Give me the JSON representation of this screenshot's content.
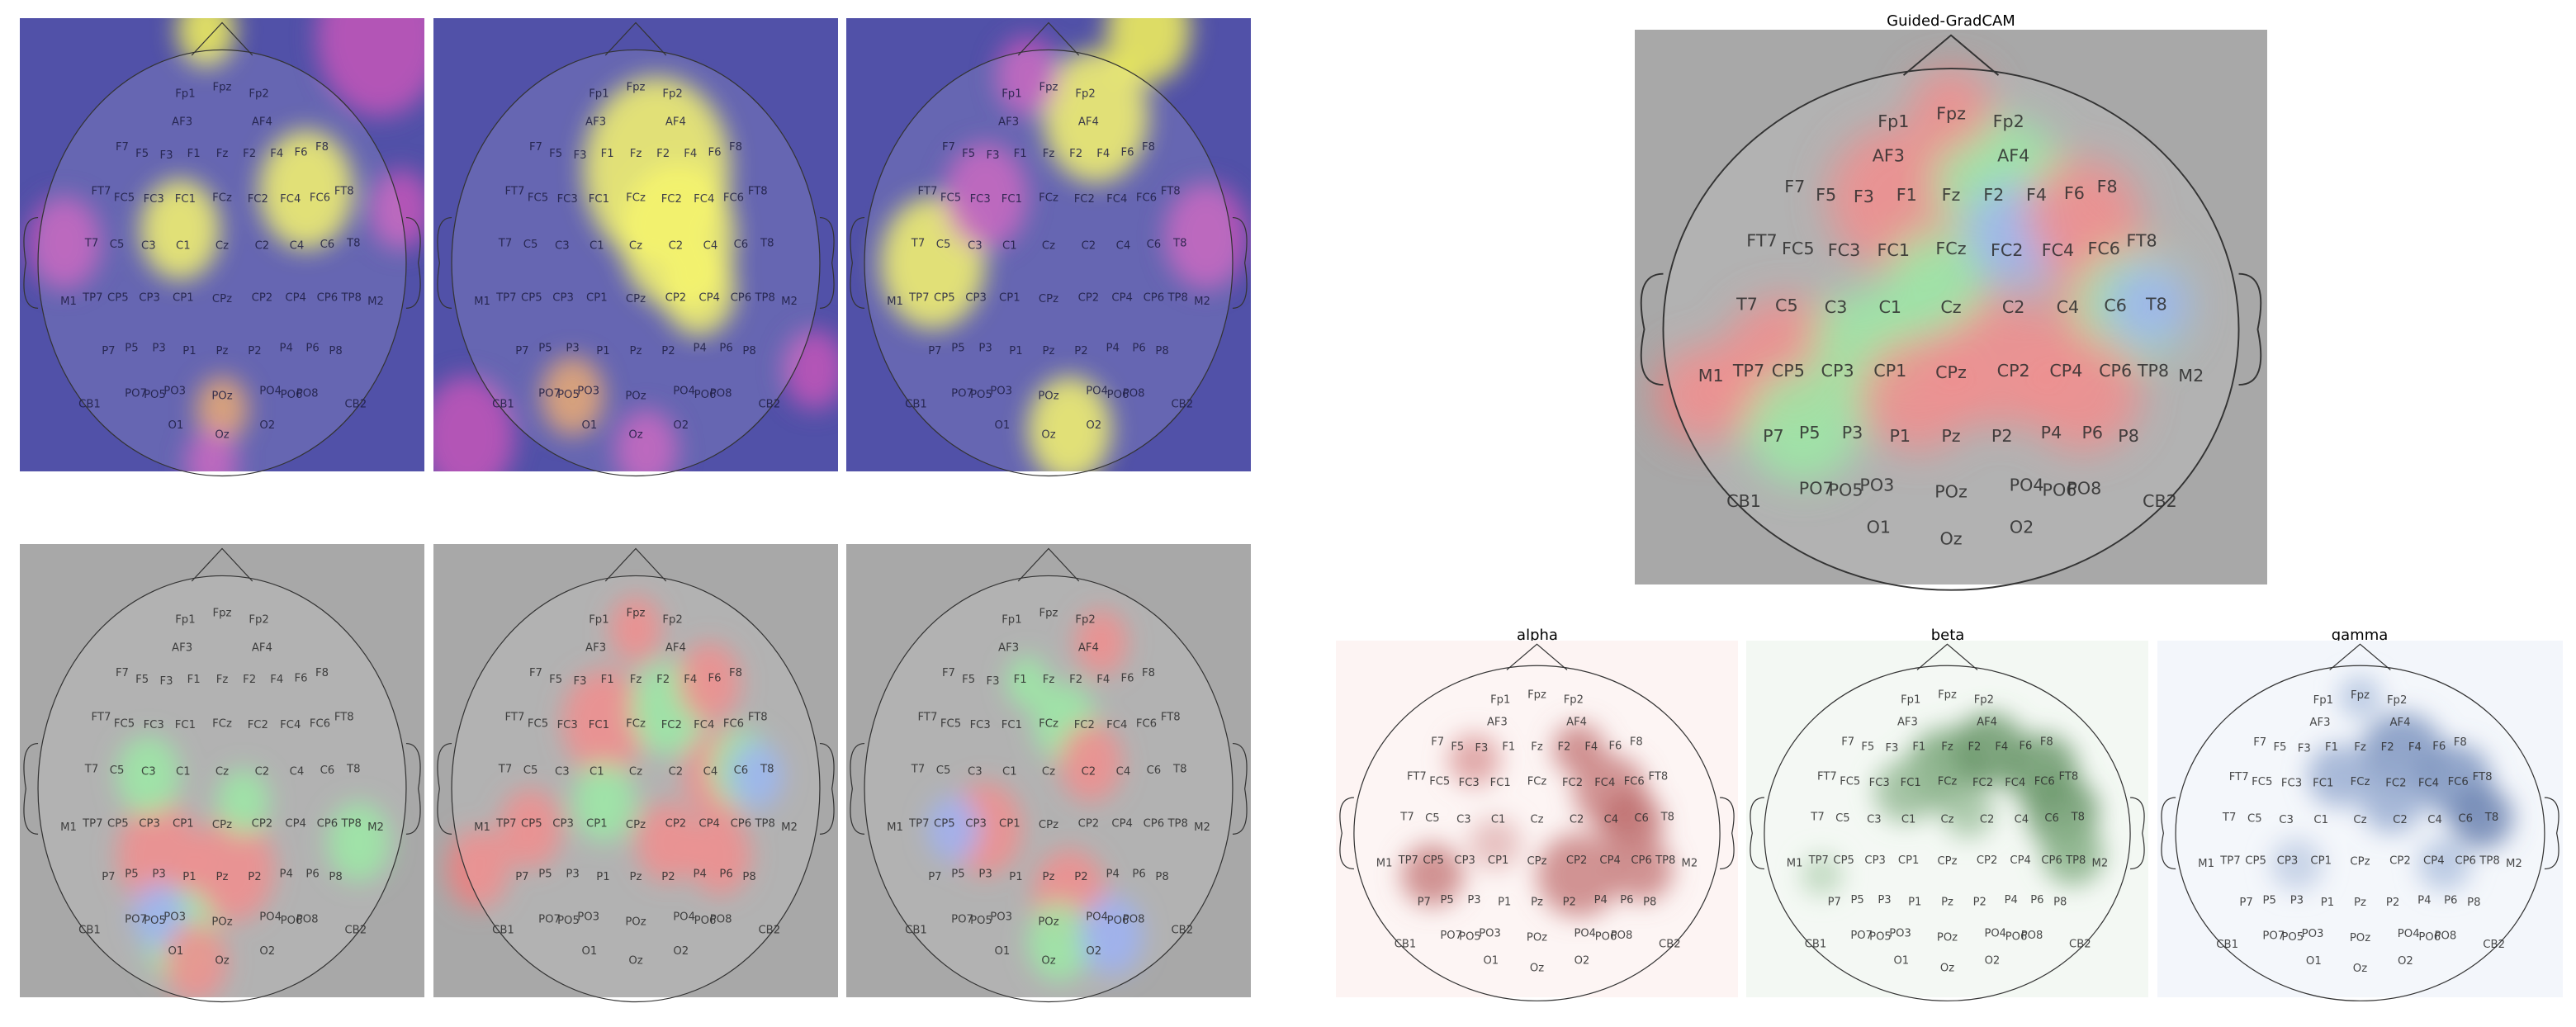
{
  "figure": {
    "main_title": "Guided-GradCAM",
    "band_titles": [
      "alpha",
      "beta",
      "gamma"
    ]
  },
  "electrodes": [
    "Fp1",
    "Fpz",
    "Fp2",
    "AF3",
    "AF4",
    "F7",
    "F5",
    "F3",
    "F1",
    "Fz",
    "F2",
    "F4",
    "F6",
    "F8",
    "FT7",
    "FC5",
    "FC3",
    "FC1",
    "FCz",
    "FC2",
    "FC4",
    "FC6",
    "FT8",
    "T7",
    "C5",
    "C3",
    "C1",
    "Cz",
    "C2",
    "C4",
    "C6",
    "T8",
    "M1",
    "TP7",
    "CP5",
    "CP3",
    "CP1",
    "CPz",
    "CP2",
    "CP4",
    "CP6",
    "TP8",
    "M2",
    "P7",
    "P5",
    "P3",
    "P1",
    "Pz",
    "P2",
    "P4",
    "P6",
    "P8",
    "CB1",
    "PO7",
    "PO5",
    "PO3",
    "POz",
    "PO4",
    "PO6",
    "PO8",
    "CB2",
    "O1",
    "Oz",
    "O2"
  ]
}
